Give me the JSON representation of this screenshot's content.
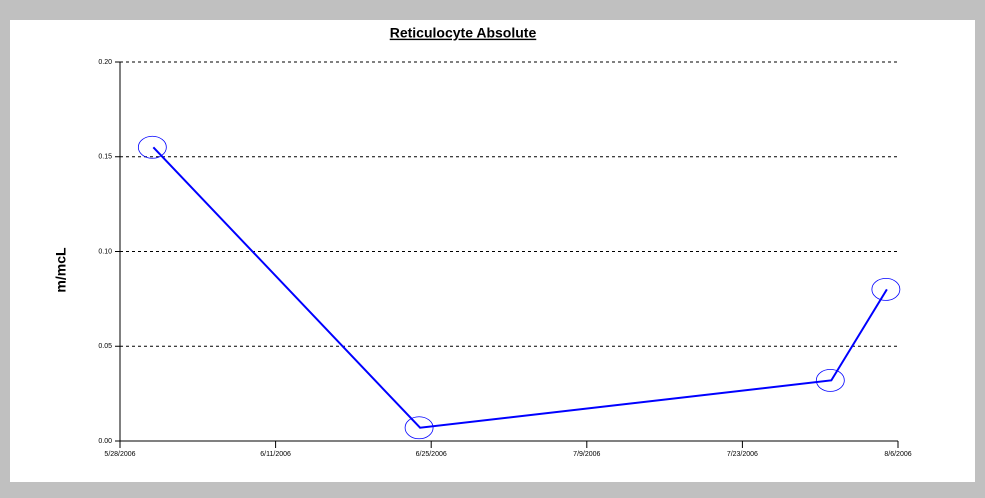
{
  "chart_data": {
    "type": "line",
    "title": "Reticulocyte Absolute",
    "y_label": "m/mcL",
    "x": [
      "2006-05-31",
      "2006-06-24",
      "2006-07-31",
      "2006-08-05"
    ],
    "series": [
      {
        "name": "Reticulocyte Absolute",
        "color": "#0000ff",
        "values": [
          0.155,
          0.007,
          0.032,
          0.08
        ]
      }
    ],
    "xlim": [
      "2006-05-28",
      "2006-08-06"
    ],
    "xticks": [
      {
        "value": "2006-05-28",
        "label": "5/28/2006"
      },
      {
        "value": "2006-06-11",
        "label": "6/11/2006"
      },
      {
        "value": "2006-06-25",
        "label": "6/25/2006"
      },
      {
        "value": "2006-07-09",
        "label": "7/9/2006"
      },
      {
        "value": "2006-07-23",
        "label": "7/23/2006"
      },
      {
        "value": "2006-08-06",
        "label": "8/6/2006"
      }
    ],
    "ylim": [
      0,
      0.2
    ],
    "yticks": [
      {
        "value": 0,
        "label": "0.00"
      },
      {
        "value": 0.05,
        "label": "0.05"
      },
      {
        "value": 0.1,
        "label": "0.10"
      },
      {
        "value": 0.15,
        "label": "0.15"
      },
      {
        "value": 0.2,
        "label": "0.20"
      }
    ],
    "grid": true
  }
}
